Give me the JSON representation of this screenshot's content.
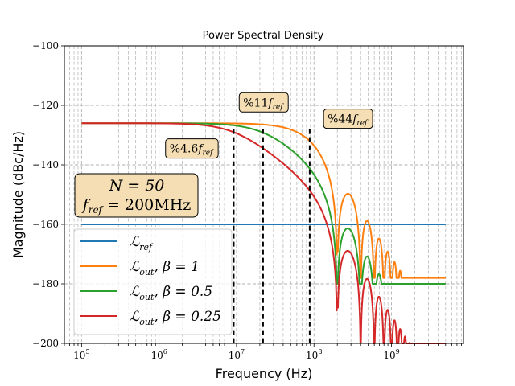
{
  "chart_data": {
    "type": "line",
    "title": "Power Spectral Density",
    "xlabel": "Frequency (Hz)",
    "ylabel": "Magnitude (dBc/Hz)",
    "xscale": "log",
    "xlim": [
      60000,
      8500000000
    ],
    "ylim": [
      -200,
      -100
    ],
    "grid": true,
    "x_ticks": [
      {
        "value": 100000,
        "base": "10",
        "exp": "5"
      },
      {
        "value": 1000000,
        "base": "10",
        "exp": "6"
      },
      {
        "value": 10000000,
        "base": "10",
        "exp": "7"
      },
      {
        "value": 100000000,
        "base": "10",
        "exp": "8"
      },
      {
        "value": 1000000000,
        "base": "10",
        "exp": "9"
      }
    ],
    "y_ticks": [
      {
        "value": -100,
        "label": "−100"
      },
      {
        "value": -120,
        "label": "−120"
      },
      {
        "value": -140,
        "label": "−140"
      },
      {
        "value": -160,
        "label": "−160"
      },
      {
        "value": -180,
        "label": "−180"
      },
      {
        "value": -200,
        "label": "−200"
      }
    ],
    "legend": {
      "placement": "lower-left",
      "entries": [
        {
          "label": "ℒref",
          "main": "ℒ",
          "sub": "ref",
          "suffix": "",
          "color": "#1f77b4"
        },
        {
          "label": "ℒout, β = 1",
          "main": "ℒ",
          "sub": "out",
          "suffix": ", β = 1",
          "color": "#ff7f0e"
        },
        {
          "label": "ℒout, β = 0.5",
          "main": "ℒ",
          "sub": "out",
          "suffix": ", β = 0.5",
          "color": "#2ca02c"
        },
        {
          "label": "ℒout, β = 0.25",
          "main": "ℒ",
          "sub": "out",
          "suffix": ", β = 0.25",
          "color": "#d62728"
        }
      ]
    },
    "f_ref_hz": 200000000,
    "series": [
      {
        "name": "ℒref",
        "color": "#1f77b4",
        "points": [
          [
            100000,
            -160
          ],
          [
            5000000000,
            -160
          ]
        ]
      },
      {
        "name": "ℒout, β = 1",
        "color": "#ff7f0e",
        "model": {
          "flat_db": -126,
          "corner_fraction": 0.44,
          "order": 1,
          "notch_spacing_hz": 200000000,
          "f_min": 100000,
          "f_max": 5000000000,
          "envelope_db_at_fmax": -163,
          "ripple_floor_db": -178
        }
      },
      {
        "name": "ℒout, β = 0.5",
        "color": "#2ca02c",
        "model": {
          "flat_db": -126,
          "corner_fraction": 0.11,
          "order": 1,
          "notch_spacing_hz": 200000000,
          "f_min": 100000,
          "f_max": 5000000000,
          "envelope_db_at_fmax": -170,
          "ripple_floor_db": -180
        }
      },
      {
        "name": "ℒout, β = 0.25",
        "color": "#d62728",
        "model": {
          "flat_db": -126,
          "corner_fraction": 0.046,
          "order": 1,
          "notch_spacing_hz": 200000000,
          "f_min": 100000,
          "f_max": 5000000000,
          "envelope_db_at_fmax": -177,
          "ripple_floor_db": -200
        }
      }
    ],
    "vlines": [
      {
        "x": 9200000,
        "style": "dashed",
        "color": "#000000",
        "y_top": -128
      },
      {
        "x": 22000000,
        "style": "dashed",
        "color": "#000000",
        "y_top": -128
      },
      {
        "x": 88000000,
        "style": "dashed",
        "color": "#000000",
        "y_top": -128
      }
    ],
    "annotations": [
      {
        "text": "%4.6f_ref",
        "prefix": "%4.6",
        "main": "f",
        "sub": "ref",
        "x": 2600000,
        "y": -134.5
      },
      {
        "text": "%11f_ref",
        "prefix": "%11",
        "main": "f",
        "sub": "ref",
        "x": 22000000,
        "y": -119
      },
      {
        "text": "%44f_ref",
        "prefix": "%44",
        "main": "f",
        "sub": "ref",
        "x": 270000000,
        "y": -124.5
      }
    ],
    "info_box": {
      "line1": "N = 50",
      "line2_main": "f",
      "line2_sub": "ref",
      "line2_rest": " = 200MHz"
    },
    "annotation_box_color": "#f5deb3"
  }
}
